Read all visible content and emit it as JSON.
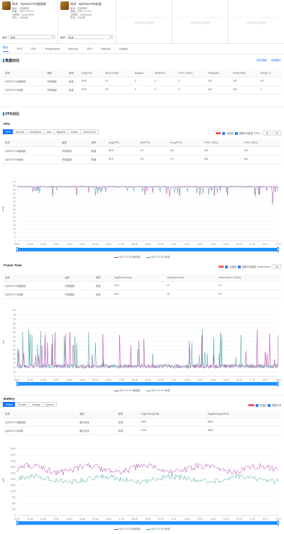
{
  "header": {
    "cards": [
      {
        "title": "再次 · IQOO10 Pro超高帧",
        "meta": [
          "版本：无前修改",
          "设备：IQOO 10 Pro",
          "分辨率：1440x3200",
          "时长：13分5秒"
        ],
        "select_label": "画质",
        "select_value": "标准"
      },
      {
        "title": "再次 · IQOO10 Pro标准",
        "meta": [
          "版本：无前修改",
          "设备：IQOO 10 Pro",
          "分辨率：1440x3200",
          "时长：13分钟"
        ],
        "select_label": "画质",
        "select_value": "标准"
      }
    ],
    "empty_slots": [
      "点击添加对比数据",
      "点击添加对比数据",
      "点击添加对比数据"
    ]
  },
  "tabs": [
    "概览",
    "FPS",
    "CPU",
    "Temperature",
    "Memory",
    "GPU",
    "Network",
    "Battery"
  ],
  "overview": {
    "title": "数据对比",
    "links": [
      "导出表格",
      "全部展开"
    ],
    "columns": [
      "名称",
      "画质",
      "帧率",
      "Avg(FPS)",
      "Jank(/10min)",
      "BigJank",
      "Stutter(%)",
      "FPS>=18[%]",
      "Peak(mW)",
      "Power(mW)",
      "Temp(℃)"
    ],
    "rows": [
      [
        "IQOO10 Pro超高帧",
        "开帧高帧",
        "标准",
        "59.9",
        "0.3",
        "0",
        "0",
        "0",
        "100",
        "100",
        "6.3"
      ],
      [
        "IQOO10 Pro标准",
        "开帧高帧",
        "标准",
        "59.8",
        "0.5",
        "0",
        "0",
        "0",
        "100",
        "100",
        "7"
      ]
    ]
  },
  "fps": {
    "section": "FPS对比",
    "title": "FPS",
    "subtabs": [
      "FPS",
      "Smooth",
      "SmallJank",
      "Jank",
      "BigJank",
      "Stutter",
      "FrameTime"
    ],
    "controls": {
      "new": "New",
      "c1": "标准线",
      "c2": "数据平滑处理",
      "c3": "FPS>=",
      "v1": "18",
      "v2": "25"
    },
    "columns": [
      "名称",
      "画质",
      "帧率",
      "Avg(FPS)",
      "Var(FPS)",
      "Drop(FPS)",
      "FPS>=18[%]",
      "FPS>=25[%]"
    ],
    "rows": [
      [
        "IQOO10 Pro超高帧",
        "开帧高帧",
        "标准",
        "59.9",
        "0.5",
        "0.8",
        "100",
        "100"
      ],
      [
        "IQOO10 Pro标准",
        "开帧高帧",
        "标准",
        "59.8",
        "0.8",
        "1.0",
        "100",
        "100"
      ]
    ],
    "y_label": "FPS",
    "y_ticks": [
      "61",
      "58",
      "54",
      "50",
      "46",
      "42",
      "38",
      "34",
      "30",
      "26",
      "22",
      "18",
      "14",
      "10",
      "6",
      "2"
    ],
    "x_ticks": [
      "00:00",
      "00:58",
      "01:56",
      "02:53",
      "03:50",
      "04:48",
      "05:46",
      "06:43",
      "07:40",
      "08:38",
      "09:36",
      "10:33",
      "11:31",
      "12:28",
      "13:25",
      "14:23",
      "15:20",
      "16:18",
      "17:15",
      "18:13",
      "19:11"
    ],
    "legend": [
      "IQOO 10 Pro超高帧",
      "IQOO 10 Pro标准"
    ]
  },
  "frametime": {
    "title": "Frame Time",
    "controls": {
      "new": "New",
      "c1": "标准线",
      "c2": "数据平滑处理",
      "c3": "FrameTime>=",
      "v1": "100"
    },
    "columns": [
      "名称",
      "画质",
      "帧率",
      "Avg(FrameTime)",
      "Var(FrameTime)",
      "FrameTime>=100[%]"
    ],
    "rows": [
      [
        "IQOO10 Pro超高帧",
        "开帧高帧",
        "标准",
        "16.6",
        "17",
        "0.0"
      ],
      [
        "IQOO10 Pro标准",
        "开帧高帧",
        "标准",
        "16.6",
        "16",
        "0.0"
      ]
    ],
    "y_label": "ms",
    "y_ticks": [
      "80",
      "75",
      "70",
      "65",
      "60",
      "55",
      "50",
      "45",
      "40",
      "35",
      "30",
      "25",
      "20",
      "15",
      "10",
      "5"
    ],
    "x_ticks": [
      "00:00",
      "00:58",
      "01:56",
      "02:53",
      "03:50",
      "04:48",
      "05:46",
      "06:43",
      "07:40",
      "08:38",
      "09:36",
      "10:33",
      "11:31",
      "12:28",
      "13:25",
      "14:23",
      "15:20",
      "16:18",
      "17:15",
      "18:13",
      "19:11"
    ],
    "legend": [
      "IQOO 10 Pro超高帧",
      "IQOO 10 Pro标准"
    ]
  },
  "battery": {
    "title": "Battery",
    "subtabs": [
      "Power",
      "FPower",
      "Voltage",
      "Current"
    ],
    "controls": {
      "new": "New",
      "c1": "标准线",
      "c2": "数据平滑"
    },
    "columns": [
      "名称",
      "画质",
      "帧率",
      "Avg(Power)[mW]",
      "Avg(Battery)[mW/h]"
    ],
    "rows": [
      [
        "IQOO10 Pro超高帧",
        "最大优化",
        "标准",
        "2325",
        "2800"
      ],
      [
        "IQOO10 Pro标准",
        "最大优化",
        "标准",
        "1793",
        "1800"
      ]
    ],
    "y_label": "mW",
    "y_ticks": [
      "3300",
      "3000",
      "2700",
      "2400",
      "2100",
      "1800",
      "1500",
      "1200",
      "900",
      "600",
      "300",
      "0"
    ],
    "x_ticks": [
      "00:00",
      "00:58",
      "01:56",
      "02:53",
      "03:50",
      "04:48",
      "05:46",
      "06:43",
      "07:40",
      "08:38",
      "09:36",
      "10:33",
      "11:31",
      "12:28",
      "13:25",
      "14:23",
      "15:20",
      "16:18",
      "17:15",
      "18:13",
      "19:11"
    ],
    "legend": [
      "IQOO 10 Pro超高帧",
      "IQOO 10 Pro标准"
    ]
  },
  "colors": {
    "accent": "#1677ff",
    "series_a": "#b03aa8",
    "series_b": "#3aa39a",
    "danger": "#e8292b"
  }
}
